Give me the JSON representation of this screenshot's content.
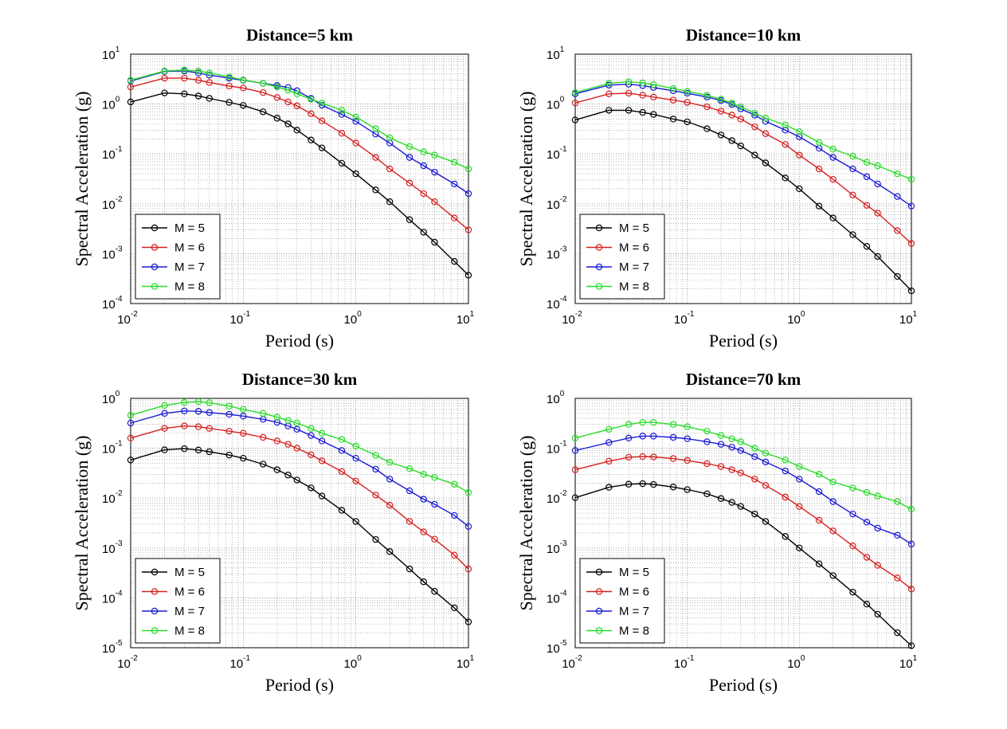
{
  "figure": {
    "background": "#ffffff",
    "grid": "dotted, major and minor",
    "legend_position": "bottom-left",
    "marker": "open circle"
  },
  "chart_data": [
    {
      "type": "line",
      "title": "Distance=5 km",
      "xlabel": "Period (s)",
      "ylabel": "Spectral Acceleration (g)",
      "xscale": "log",
      "yscale": "log",
      "xlim": [
        0.01,
        10
      ],
      "ylim": [
        0.0001,
        10
      ],
      "xticks": [
        "10^-2",
        "10^-1",
        "10^0",
        "10^1"
      ],
      "yticks": [
        "10^-4",
        "10^-3",
        "10^-2",
        "10^-1",
        "10^0",
        "10^1"
      ],
      "x": [
        0.01,
        0.02,
        0.03,
        0.04,
        0.05,
        0.075,
        0.1,
        0.15,
        0.2,
        0.25,
        0.3,
        0.4,
        0.5,
        0.75,
        1.0,
        1.5,
        2.0,
        3.0,
        4.0,
        5.0,
        7.5,
        10.0
      ],
      "legend_position": "bottom-left",
      "series": [
        {
          "name": "M = 5",
          "color": "#000000",
          "values": [
            1.1,
            1.67,
            1.6,
            1.45,
            1.3,
            1.08,
            0.94,
            0.7,
            0.52,
            0.4,
            0.3,
            0.19,
            0.132,
            0.065,
            0.04,
            0.019,
            0.011,
            0.0048,
            0.0027,
            0.0017,
            0.0007,
            0.00037
          ]
        },
        {
          "name": "M = 6",
          "color": "#d62020",
          "values": [
            2.2,
            3.3,
            3.3,
            3.0,
            2.7,
            2.3,
            2.1,
            1.7,
            1.35,
            1.1,
            0.92,
            0.64,
            0.46,
            0.26,
            0.165,
            0.085,
            0.05,
            0.026,
            0.016,
            0.011,
            0.0052,
            0.003
          ]
        },
        {
          "name": "M = 7",
          "color": "#1a1ad6",
          "values": [
            2.9,
            4.5,
            4.6,
            4.2,
            3.8,
            3.3,
            3.0,
            2.6,
            2.35,
            2.15,
            1.85,
            1.3,
            0.95,
            0.62,
            0.45,
            0.25,
            0.165,
            0.085,
            0.058,
            0.043,
            0.025,
            0.016
          ]
        },
        {
          "name": "M = 8",
          "color": "#28dc28",
          "values": [
            3.0,
            4.6,
            4.8,
            4.6,
            4.2,
            3.5,
            3.05,
            2.6,
            2.2,
            1.9,
            1.6,
            1.25,
            1.05,
            0.75,
            0.55,
            0.32,
            0.21,
            0.14,
            0.11,
            0.095,
            0.068,
            0.05
          ]
        }
      ]
    },
    {
      "type": "line",
      "title": "Distance=10 km",
      "xlabel": "Period (s)",
      "ylabel": "Spectral Acceleration (g)",
      "xscale": "log",
      "yscale": "log",
      "xlim": [
        0.01,
        10
      ],
      "ylim": [
        0.0001,
        10
      ],
      "xticks": [
        "10^-2",
        "10^-1",
        "10^0",
        "10^1"
      ],
      "yticks": [
        "10^-4",
        "10^-3",
        "10^-2",
        "10^-1",
        "10^0",
        "10^1"
      ],
      "x": [
        0.01,
        0.02,
        0.03,
        0.04,
        0.05,
        0.075,
        0.1,
        0.15,
        0.2,
        0.25,
        0.3,
        0.4,
        0.5,
        0.75,
        1.0,
        1.5,
        2.0,
        3.0,
        4.0,
        5.0,
        7.5,
        10.0
      ],
      "legend_position": "bottom-left",
      "series": [
        {
          "name": "M = 5",
          "color": "#000000",
          "values": [
            0.48,
            0.75,
            0.75,
            0.68,
            0.62,
            0.5,
            0.44,
            0.32,
            0.24,
            0.185,
            0.145,
            0.095,
            0.066,
            0.033,
            0.02,
            0.009,
            0.0052,
            0.0024,
            0.0014,
            0.00088,
            0.00035,
            0.00018
          ]
        },
        {
          "name": "M = 6",
          "color": "#d62020",
          "values": [
            1.05,
            1.6,
            1.65,
            1.5,
            1.38,
            1.2,
            1.08,
            0.88,
            0.72,
            0.6,
            0.5,
            0.35,
            0.255,
            0.155,
            0.095,
            0.05,
            0.031,
            0.015,
            0.0093,
            0.0065,
            0.0029,
            0.0016
          ]
        },
        {
          "name": "M = 7",
          "color": "#1a1ad6",
          "values": [
            1.6,
            2.4,
            2.5,
            2.35,
            2.15,
            1.85,
            1.65,
            1.38,
            1.18,
            0.98,
            0.8,
            0.6,
            0.45,
            0.3,
            0.22,
            0.13,
            0.085,
            0.05,
            0.035,
            0.025,
            0.014,
            0.009
          ]
        },
        {
          "name": "M = 8",
          "color": "#28dc28",
          "values": [
            1.7,
            2.6,
            2.8,
            2.65,
            2.45,
            2.05,
            1.8,
            1.5,
            1.25,
            1.05,
            0.88,
            0.66,
            0.52,
            0.38,
            0.28,
            0.17,
            0.125,
            0.09,
            0.068,
            0.058,
            0.04,
            0.031
          ]
        }
      ]
    },
    {
      "type": "line",
      "title": "Distance=30 km",
      "xlabel": "Period (s)",
      "ylabel": "Spectral Acceleration (g)",
      "xscale": "log",
      "yscale": "log",
      "xlim": [
        0.01,
        10
      ],
      "ylim": [
        1e-05,
        1
      ],
      "xticks": [
        "10^-2",
        "10^-1",
        "10^0",
        "10^1"
      ],
      "yticks": [
        "10^-5",
        "10^-4",
        "10^-3",
        "10^-2",
        "10^-1",
        "10^0"
      ],
      "x": [
        0.01,
        0.02,
        0.03,
        0.04,
        0.05,
        0.075,
        0.1,
        0.15,
        0.2,
        0.25,
        0.3,
        0.4,
        0.5,
        0.75,
        1.0,
        1.5,
        2.0,
        3.0,
        4.0,
        5.0,
        7.5,
        10.0
      ],
      "legend_position": "bottom-left",
      "series": [
        {
          "name": "M = 5",
          "color": "#000000",
          "values": [
            0.058,
            0.093,
            0.098,
            0.092,
            0.085,
            0.073,
            0.063,
            0.048,
            0.037,
            0.029,
            0.023,
            0.016,
            0.011,
            0.0057,
            0.0034,
            0.00148,
            0.00085,
            0.00038,
            0.00021,
            0.000135,
            6.3e-05,
            3.3e-05
          ]
        },
        {
          "name": "M = 6",
          "color": "#d62020",
          "values": [
            0.16,
            0.25,
            0.28,
            0.27,
            0.25,
            0.22,
            0.2,
            0.165,
            0.14,
            0.12,
            0.1,
            0.074,
            0.056,
            0.034,
            0.022,
            0.0115,
            0.0072,
            0.0034,
            0.0021,
            0.0015,
            0.00072,
            0.00038
          ]
        },
        {
          "name": "M = 7",
          "color": "#1a1ad6",
          "values": [
            0.32,
            0.5,
            0.56,
            0.55,
            0.52,
            0.48,
            0.44,
            0.38,
            0.33,
            0.28,
            0.24,
            0.18,
            0.14,
            0.09,
            0.063,
            0.038,
            0.024,
            0.014,
            0.0095,
            0.0075,
            0.0045,
            0.0027
          ]
        },
        {
          "name": "M = 8",
          "color": "#28dc28",
          "values": [
            0.46,
            0.72,
            0.83,
            0.86,
            0.82,
            0.7,
            0.6,
            0.5,
            0.42,
            0.36,
            0.32,
            0.25,
            0.2,
            0.15,
            0.11,
            0.072,
            0.052,
            0.039,
            0.03,
            0.026,
            0.019,
            0.013
          ]
        }
      ]
    },
    {
      "type": "line",
      "title": "Distance=70 km",
      "xlabel": "Period (s)",
      "ylabel": "Spectral Acceleration (g)",
      "xscale": "log",
      "yscale": "log",
      "xlim": [
        0.01,
        10
      ],
      "ylim": [
        1e-05,
        1
      ],
      "xticks": [
        "10^-2",
        "10^-1",
        "10^0",
        "10^1"
      ],
      "yticks": [
        "10^-5",
        "10^-4",
        "10^-3",
        "10^-2",
        "10^-1",
        "10^0"
      ],
      "x": [
        0.01,
        0.02,
        0.03,
        0.04,
        0.05,
        0.075,
        0.1,
        0.15,
        0.2,
        0.25,
        0.3,
        0.4,
        0.5,
        0.75,
        1.0,
        1.5,
        2.0,
        3.0,
        4.0,
        5.0,
        7.5,
        10.0
      ],
      "legend_position": "bottom-left",
      "series": [
        {
          "name": "M = 5",
          "color": "#000000",
          "values": [
            0.0102,
            0.0165,
            0.019,
            0.0195,
            0.0188,
            0.0167,
            0.0148,
            0.0122,
            0.0098,
            0.0082,
            0.0068,
            0.0048,
            0.0034,
            0.0017,
            0.001,
            0.00048,
            0.00028,
            0.00013,
            7.5e-05,
            4.7e-05,
            2e-05,
            1.1e-05
          ]
        },
        {
          "name": "M = 6",
          "color": "#d62020",
          "values": [
            0.037,
            0.055,
            0.066,
            0.068,
            0.067,
            0.062,
            0.057,
            0.049,
            0.043,
            0.037,
            0.032,
            0.024,
            0.018,
            0.0105,
            0.0068,
            0.0036,
            0.0022,
            0.0011,
            0.00065,
            0.00045,
            0.00025,
            0.00015
          ]
        },
        {
          "name": "M = 7",
          "color": "#1a1ad6",
          "values": [
            0.09,
            0.13,
            0.16,
            0.175,
            0.175,
            0.165,
            0.155,
            0.135,
            0.12,
            0.105,
            0.09,
            0.068,
            0.053,
            0.035,
            0.024,
            0.0135,
            0.0085,
            0.0048,
            0.0033,
            0.0025,
            0.0018,
            0.0012
          ]
        },
        {
          "name": "M = 8",
          "color": "#28dc28",
          "values": [
            0.16,
            0.24,
            0.3,
            0.33,
            0.33,
            0.3,
            0.27,
            0.22,
            0.18,
            0.155,
            0.135,
            0.1,
            0.08,
            0.058,
            0.043,
            0.03,
            0.021,
            0.016,
            0.013,
            0.011,
            0.0085,
            0.006
          ]
        }
      ]
    }
  ]
}
